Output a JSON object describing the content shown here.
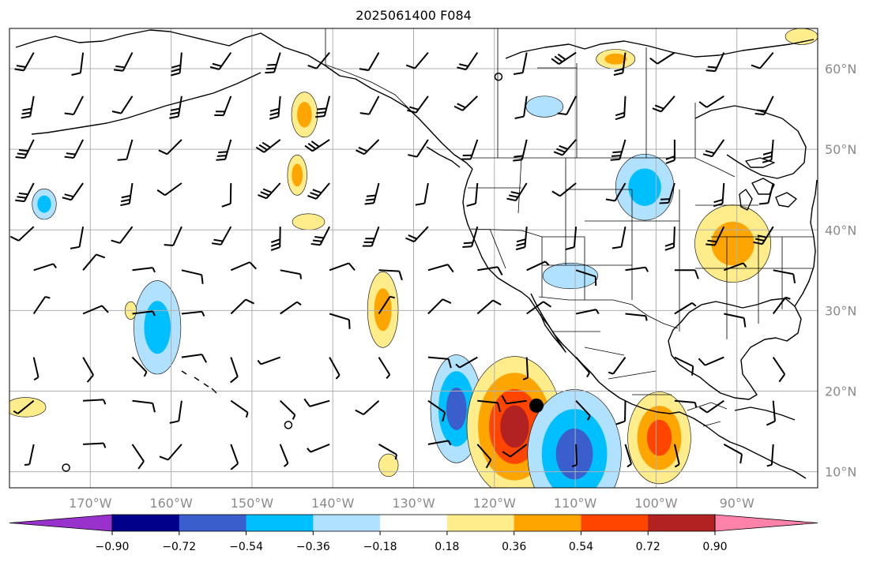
{
  "title": "2025061400 F084",
  "map": {
    "lon_range": [
      -180,
      -80
    ],
    "lat_range": [
      8,
      65
    ],
    "lon_ticks": [
      {
        "value": -170,
        "label": "170°W"
      },
      {
        "value": -160,
        "label": "160°W"
      },
      {
        "value": -150,
        "label": "150°W"
      },
      {
        "value": -140,
        "label": "140°W"
      },
      {
        "value": -130,
        "label": "130°W"
      },
      {
        "value": -120,
        "label": "120°W"
      },
      {
        "value": -110,
        "label": "110°W"
      },
      {
        "value": -100,
        "label": "100°W"
      },
      {
        "value": -90,
        "label": "90°W"
      }
    ],
    "lat_ticks": [
      {
        "value": 10,
        "label": "10°N"
      },
      {
        "value": 20,
        "label": "20°N"
      },
      {
        "value": 30,
        "label": "30°N"
      },
      {
        "value": 40,
        "label": "40°N"
      },
      {
        "value": 50,
        "label": "50°N"
      },
      {
        "value": 60,
        "label": "60°N"
      }
    ],
    "grid": true,
    "colors": {
      "land_outline": "#000000",
      "grid": "#b0b0b0",
      "tick_label": "#8a8a8a"
    }
  },
  "colorbar": {
    "levels": [
      "−0.90",
      "−0.72",
      "−0.54",
      "−0.36",
      "−0.18",
      "0.18",
      "0.36",
      "0.54",
      "0.72",
      "0.90"
    ],
    "colors": [
      "#9932cc",
      "#00008b",
      "#3a5fcd",
      "#00bfff",
      "#b0e2ff",
      "#ffffff",
      "#ffec8b",
      "#ffa500",
      "#ff4500",
      "#b22222",
      "#ff82ab"
    ],
    "extend": "both"
  },
  "chart_data": {
    "type": "map",
    "projection": "PlateCarree",
    "title": "2025061400 F084",
    "xlabel": "",
    "ylabel": "",
    "xlim": [
      -180,
      -80
    ],
    "ylim": [
      8,
      65
    ],
    "contour_levels": [
      -0.9,
      -0.72,
      -0.54,
      -0.36,
      -0.18,
      0.18,
      0.36,
      0.54,
      0.72,
      0.9
    ],
    "anomaly_regions": [
      {
        "sign": "positive",
        "peak_level": 0.36,
        "center": [
          -143.5,
          54.3
        ],
        "radius": [
          1.6,
          2.8
        ]
      },
      {
        "sign": "positive",
        "peak_level": 0.36,
        "center": [
          -144.4,
          46.8
        ],
        "radius": [
          1.2,
          2.5
        ]
      },
      {
        "sign": "positive",
        "peak_level": 0.18,
        "center": [
          -143,
          41
        ],
        "radius": [
          2,
          1
        ]
      },
      {
        "sign": "negative",
        "peak_level": -0.36,
        "center": [
          -175.7,
          43.2
        ],
        "radius": [
          1.5,
          1.9
        ]
      },
      {
        "sign": "positive",
        "peak_level": 0.36,
        "center": [
          -133.8,
          30.1
        ],
        "radius": [
          1.9,
          4.7
        ]
      },
      {
        "sign": "negative",
        "peak_level": -0.36,
        "center": [
          -161.7,
          27.9
        ],
        "radius": [
          2.9,
          5.8
        ]
      },
      {
        "sign": "positive",
        "peak_level": 0.18,
        "center": [
          -165,
          30
        ],
        "radius": [
          0.7,
          1.1
        ]
      },
      {
        "sign": "positive",
        "peak_level": 0.18,
        "center": [
          -178,
          18
        ],
        "radius": [
          2.5,
          1.2
        ]
      },
      {
        "sign": "negative",
        "peak_level": -0.54,
        "center": [
          -124.7,
          17.8
        ],
        "radius": [
          3.2,
          6.7
        ]
      },
      {
        "sign": "positive",
        "peak_level": 0.72,
        "center": [
          -117.5,
          15.6
        ],
        "radius": [
          5.9,
          8.7
        ]
      },
      {
        "sign": "negative",
        "peak_level": -0.54,
        "center": [
          -110.1,
          12.2
        ],
        "radius": [
          5.8,
          8
        ]
      },
      {
        "sign": "positive",
        "peak_level": 0.54,
        "center": [
          -99.6,
          14.2
        ],
        "radius": [
          3.9,
          5.7
        ]
      },
      {
        "sign": "negative",
        "peak_level": -0.36,
        "center": [
          -101.4,
          45.3
        ],
        "radius": [
          3.6,
          4.1
        ]
      },
      {
        "sign": "positive",
        "peak_level": 0.36,
        "center": [
          -90.5,
          38.3
        ],
        "radius": [
          4.7,
          4.8
        ]
      },
      {
        "sign": "negative",
        "peak_level": -0.18,
        "center": [
          -110.6,
          34.3
        ],
        "radius": [
          3.4,
          1.6
        ]
      },
      {
        "sign": "negative",
        "peak_level": -0.18,
        "center": [
          -113.8,
          55.3
        ],
        "radius": [
          2.3,
          1.3
        ]
      },
      {
        "sign": "positive",
        "peak_level": 0.36,
        "center": [
          -105,
          61.2
        ],
        "radius": [
          2.4,
          1.2
        ]
      },
      {
        "sign": "positive",
        "peak_level": 0.18,
        "center": [
          -133.1,
          10.8
        ],
        "radius": [
          1.2,
          1.4
        ]
      },
      {
        "sign": "positive",
        "peak_level": 0.18,
        "center": [
          -82,
          64
        ],
        "radius": [
          2,
          1
        ]
      }
    ],
    "markers": [
      {
        "type": "filled-circle",
        "lon": -114.8,
        "lat": 18.2
      },
      {
        "type": "open-circle",
        "lon": -173,
        "lat": 10.5
      },
      {
        "type": "open-circle",
        "lon": -119.5,
        "lat": 59
      },
      {
        "type": "open-circle",
        "lon": -145.5,
        "lat": 15.8
      }
    ],
    "wind_barbs_layer": "wind barbs plotted on a 6° grid over the map domain"
  }
}
